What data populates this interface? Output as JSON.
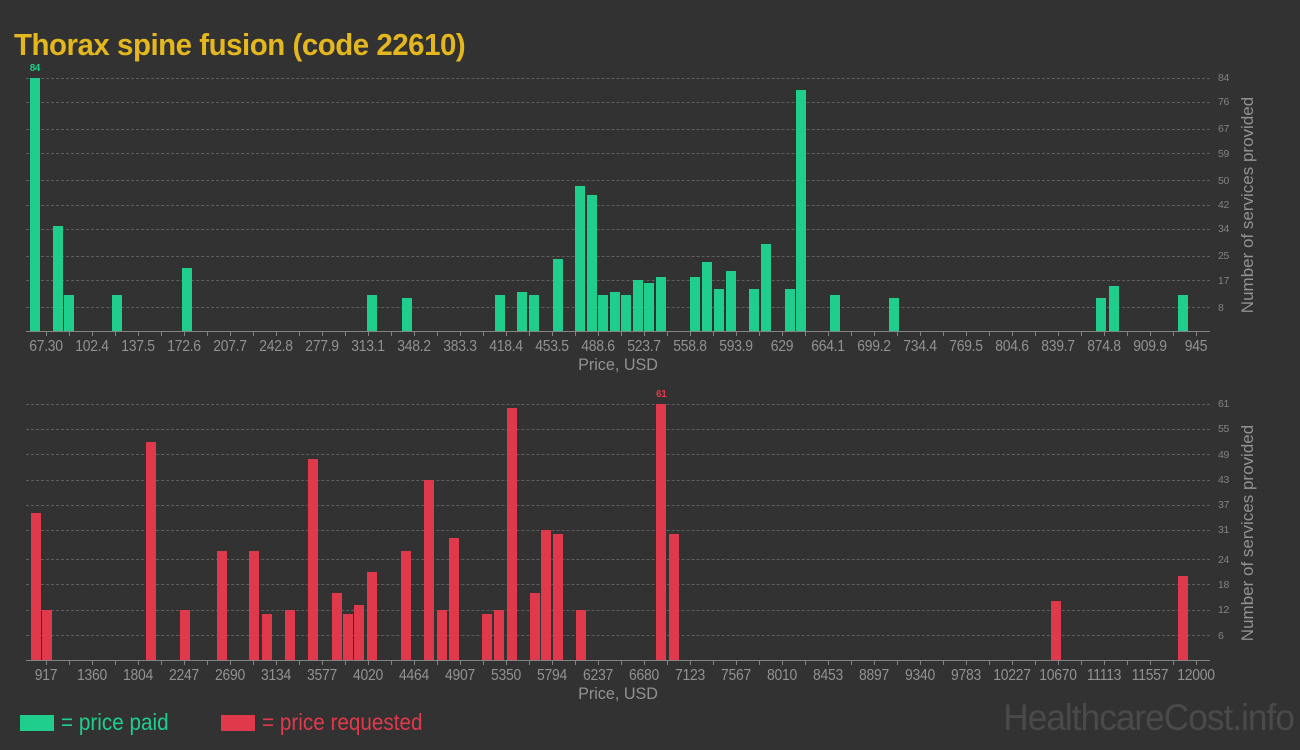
{
  "title": "Thorax spine fusion (code 22610)",
  "watermark": "HealthcareCost.info",
  "legend": {
    "paid_label": "= price paid",
    "requested_label": "= price requested"
  },
  "colors": {
    "background": "#323232",
    "paid": "#1fce8c",
    "requested": "#e0394b",
    "title": "#e4b71e",
    "watermark": "#4a4a4a"
  },
  "chart_data": [
    {
      "type": "bar",
      "series_name": "price paid",
      "color_key": "paid",
      "xlabel": "Price, USD",
      "ylabel": "Number of services provided",
      "grid": "horizontal dashed",
      "legend_position": "bottom-left",
      "xlim": [
        52.3,
        955.9
      ],
      "ylim": [
        0,
        84
      ],
      "y_ticks": [
        84,
        76,
        67,
        59,
        50,
        42,
        34,
        25,
        17,
        8
      ],
      "x_ticks": [
        {
          "label": "67.30",
          "value": 67.3
        },
        {
          "label": "102.4",
          "value": 102.4
        },
        {
          "label": "137.5",
          "value": 137.5
        },
        {
          "label": "172.6",
          "value": 172.6
        },
        {
          "label": "207.7",
          "value": 207.7
        },
        {
          "label": "242.8",
          "value": 242.8
        },
        {
          "label": "277.9",
          "value": 277.9
        },
        {
          "label": "313.1",
          "value": 313.1
        },
        {
          "label": "348.2",
          "value": 348.2
        },
        {
          "label": "383.3",
          "value": 383.3
        },
        {
          "label": "418.4",
          "value": 418.4
        },
        {
          "label": "453.5",
          "value": 453.5
        },
        {
          "label": "488.6",
          "value": 488.6
        },
        {
          "label": "523.7",
          "value": 523.7
        },
        {
          "label": "558.8",
          "value": 558.8
        },
        {
          "label": "593.9",
          "value": 593.9
        },
        {
          "label": "629",
          "value": 629
        },
        {
          "label": "664.1",
          "value": 664.1
        },
        {
          "label": "699.2",
          "value": 699.2
        },
        {
          "label": "734.4",
          "value": 734.4
        },
        {
          "label": "769.5",
          "value": 769.5
        },
        {
          "label": "804.6",
          "value": 804.6
        },
        {
          "label": "839.7",
          "value": 839.7
        },
        {
          "label": "874.8",
          "value": 874.8
        },
        {
          "label": "909.9",
          "value": 909.9
        },
        {
          "label": "945",
          "value": 945
        }
      ],
      "bars": [
        {
          "price": 59,
          "count": 84,
          "label": "84"
        },
        {
          "price": 77,
          "count": 35
        },
        {
          "price": 85,
          "count": 12
        },
        {
          "price": 122,
          "count": 12
        },
        {
          "price": 175,
          "count": 21
        },
        {
          "price": 316,
          "count": 12
        },
        {
          "price": 343,
          "count": 11
        },
        {
          "price": 414,
          "count": 12
        },
        {
          "price": 431,
          "count": 13
        },
        {
          "price": 440,
          "count": 12
        },
        {
          "price": 458,
          "count": 24
        },
        {
          "price": 475,
          "count": 48
        },
        {
          "price": 484,
          "count": 45
        },
        {
          "price": 493,
          "count": 12
        },
        {
          "price": 502,
          "count": 13
        },
        {
          "price": 510,
          "count": 12
        },
        {
          "price": 519,
          "count": 17
        },
        {
          "price": 528,
          "count": 16
        },
        {
          "price": 537,
          "count": 18
        },
        {
          "price": 563,
          "count": 18
        },
        {
          "price": 572,
          "count": 23
        },
        {
          "price": 581,
          "count": 14
        },
        {
          "price": 590,
          "count": 20
        },
        {
          "price": 608,
          "count": 14
        },
        {
          "price": 617,
          "count": 29
        },
        {
          "price": 635,
          "count": 14
        },
        {
          "price": 644,
          "count": 80
        },
        {
          "price": 670,
          "count": 12
        },
        {
          "price": 715,
          "count": 11
        },
        {
          "price": 873,
          "count": 11
        },
        {
          "price": 883,
          "count": 15
        },
        {
          "price": 935,
          "count": 12
        }
      ]
    },
    {
      "type": "bar",
      "series_name": "price requested",
      "color_key": "requested",
      "xlabel": "Price, USD",
      "ylabel": "Number of services provided",
      "grid": "horizontal dashed",
      "legend_position": "bottom-left",
      "xlim": [
        727,
        12138
      ],
      "ylim": [
        0,
        61
      ],
      "y_ticks": [
        61,
        55,
        49,
        43,
        37,
        31,
        24,
        18,
        12,
        6
      ],
      "x_ticks": [
        {
          "label": "917",
          "value": 917
        },
        {
          "label": "1360",
          "value": 1360
        },
        {
          "label": "1804",
          "value": 1804
        },
        {
          "label": "2247",
          "value": 2247
        },
        {
          "label": "2690",
          "value": 2690
        },
        {
          "label": "3134",
          "value": 3134
        },
        {
          "label": "3577",
          "value": 3577
        },
        {
          "label": "4020",
          "value": 4020
        },
        {
          "label": "4464",
          "value": 4464
        },
        {
          "label": "4907",
          "value": 4907
        },
        {
          "label": "5350",
          "value": 5350
        },
        {
          "label": "5794",
          "value": 5794
        },
        {
          "label": "6237",
          "value": 6237
        },
        {
          "label": "6680",
          "value": 6680
        },
        {
          "label": "7123",
          "value": 7123
        },
        {
          "label": "7567",
          "value": 7567
        },
        {
          "label": "8010",
          "value": 8010
        },
        {
          "label": "8453",
          "value": 8453
        },
        {
          "label": "8897",
          "value": 8897
        },
        {
          "label": "9340",
          "value": 9340
        },
        {
          "label": "9783",
          "value": 9783
        },
        {
          "label": "10227",
          "value": 10227
        },
        {
          "label": "10670",
          "value": 10670
        },
        {
          "label": "11113",
          "value": 11113
        },
        {
          "label": "11557",
          "value": 11557
        },
        {
          "label": "12000",
          "value": 12000
        }
      ],
      "bars": [
        {
          "price": 825,
          "count": 35
        },
        {
          "price": 934,
          "count": 12
        },
        {
          "price": 1934,
          "count": 52
        },
        {
          "price": 2264,
          "count": 12
        },
        {
          "price": 2618,
          "count": 26
        },
        {
          "price": 2929,
          "count": 26
        },
        {
          "price": 3047,
          "count": 11
        },
        {
          "price": 3272,
          "count": 12
        },
        {
          "price": 3491,
          "count": 48
        },
        {
          "price": 3722,
          "count": 16
        },
        {
          "price": 3826,
          "count": 11
        },
        {
          "price": 3938,
          "count": 13
        },
        {
          "price": 4060,
          "count": 21
        },
        {
          "price": 4391,
          "count": 26
        },
        {
          "price": 4613,
          "count": 43
        },
        {
          "price": 4734,
          "count": 12
        },
        {
          "price": 4850,
          "count": 29
        },
        {
          "price": 5172,
          "count": 11
        },
        {
          "price": 5290,
          "count": 12
        },
        {
          "price": 5408,
          "count": 60
        },
        {
          "price": 5628,
          "count": 16
        },
        {
          "price": 5737,
          "count": 31
        },
        {
          "price": 5852,
          "count": 30
        },
        {
          "price": 6078,
          "count": 12
        },
        {
          "price": 6849,
          "count": 61,
          "label": "61"
        },
        {
          "price": 6970,
          "count": 30
        },
        {
          "price": 10649,
          "count": 14
        },
        {
          "price": 11880,
          "count": 20
        }
      ]
    }
  ]
}
